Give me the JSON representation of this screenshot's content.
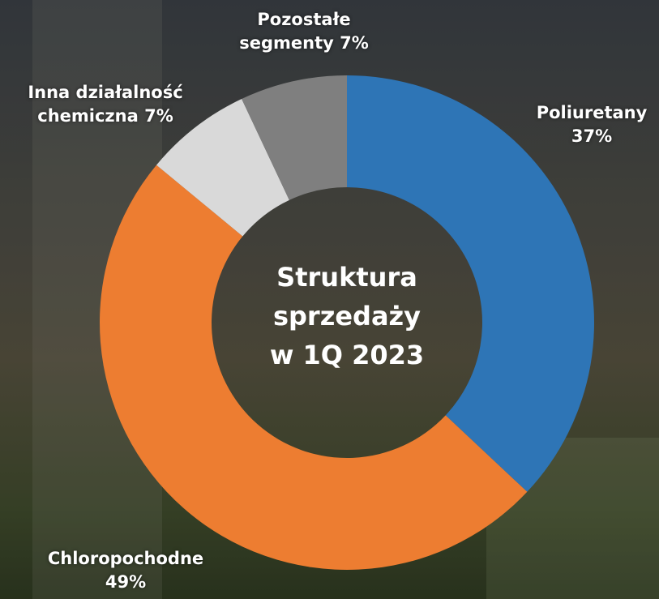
{
  "chart_data": {
    "type": "donut",
    "title": "Struktura sprzedaży w 1Q 2023",
    "categories": [
      "Poliuretany",
      "Chloropochodne",
      "Inna działalność chemiczna",
      "Pozostałe segmenty"
    ],
    "values": [
      37,
      49,
      7,
      7
    ],
    "value_labels": [
      "37%",
      "49%",
      "7%",
      "7%"
    ],
    "colors": [
      "#2e75b6",
      "#ed7d31",
      "#d9d9d9",
      "#7f7f7f"
    ]
  }
}
